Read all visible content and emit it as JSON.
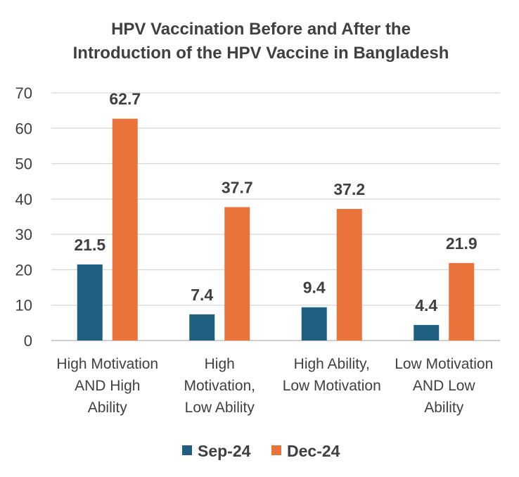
{
  "chart_data": {
    "type": "bar",
    "title_lines": [
      "HPV Vaccination Before and After the",
      "Introduction of the HPV Vaccine in Bangladesh"
    ],
    "categories": [
      [
        "High Motivation",
        "AND High",
        "Ability"
      ],
      [
        "High",
        "Motivation,",
        "Low Ability"
      ],
      [
        "High Ability,",
        "Low Motivation"
      ],
      [
        "Low Motivation",
        "AND Low",
        "Ability"
      ]
    ],
    "series": [
      {
        "name": "Sep-24",
        "color": "#1f5f7f",
        "values": [
          21.5,
          7.4,
          9.4,
          4.4
        ],
        "labels": [
          "21.5",
          "7.4",
          "9.4",
          "4.4"
        ]
      },
      {
        "name": "Dec-24",
        "color": "#e9733a",
        "values": [
          62.7,
          37.7,
          37.2,
          21.9
        ],
        "labels": [
          "62.7",
          "37.7",
          "37.2",
          "21.9"
        ]
      }
    ],
    "ylim": [
      0,
      70
    ],
    "yticks": [
      0,
      10,
      20,
      30,
      40,
      50,
      60,
      70
    ],
    "ytick_labels": [
      "0",
      "10",
      "20",
      "30",
      "40",
      "50",
      "60",
      "70"
    ],
    "xlabel": "",
    "ylabel": "",
    "grid": true,
    "legend_position": "bottom"
  }
}
